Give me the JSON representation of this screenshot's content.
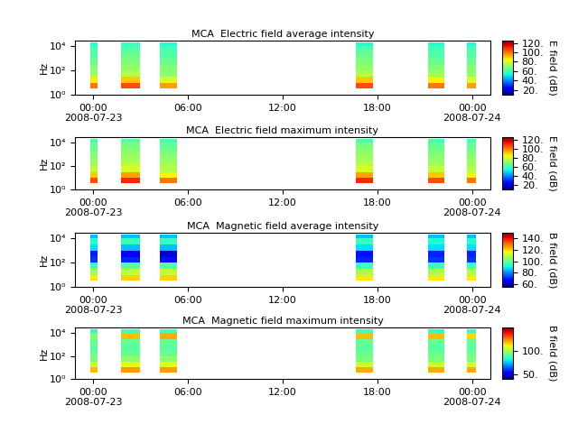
{
  "chart_data": [
    {
      "type": "heatmap",
      "title": "MCA  Electric field average intensity",
      "y_label": "Hz",
      "log": "y",
      "xlim": [
        -1.15,
        25.15
      ],
      "xticks": [
        {
          "value": 0,
          "label": "00:00\n2008-07-23"
        },
        {
          "value": 6,
          "label": "06:00"
        },
        {
          "value": 12,
          "label": "12:00"
        },
        {
          "value": 18,
          "label": "18:00"
        },
        {
          "value": 24,
          "label": "00:00\n2008-07-24"
        }
      ],
      "ylim": [
        1,
        30000
      ],
      "yticks": [
        {
          "value": 1,
          "label": "10⁰"
        },
        {
          "value": 100,
          "label": "10²"
        },
        {
          "value": 10000,
          "label": "10⁴"
        }
      ],
      "x_segments": [
        [
          -0.17,
          0.29
        ],
        [
          1.77,
          2.97
        ],
        [
          4.23,
          5.31
        ],
        [
          16.63,
          17.71
        ],
        [
          21.2,
          22.23
        ],
        [
          23.66,
          24.23
        ]
      ],
      "y_edges": [
        3.5,
        10,
        30,
        100,
        300,
        1000,
        3000,
        10000,
        20000
      ],
      "cells": [
        [
          100,
          105,
          95,
          105,
          100,
          95
        ],
        [
          85,
          90,
          80,
          90,
          85,
          80
        ],
        [
          72,
          75,
          70,
          75,
          72,
          70
        ],
        [
          68,
          70,
          68,
          70,
          68,
          68
        ],
        [
          65,
          68,
          65,
          68,
          65,
          65
        ],
        [
          62,
          65,
          62,
          65,
          62,
          62
        ],
        [
          60,
          62,
          60,
          62,
          60,
          60
        ],
        [
          55,
          58,
          55,
          55,
          55,
          55
        ]
      ],
      "colorbar_label": "E field (dB)",
      "colorbar_lim": [
        10,
        125
      ],
      "colorbar_ticks": [
        {
          "value": 20,
          "label": "20."
        },
        {
          "value": 40,
          "label": "40."
        },
        {
          "value": 60,
          "label": "60."
        },
        {
          "value": 80,
          "label": "80."
        },
        {
          "value": 100,
          "label": "100."
        },
        {
          "value": 120,
          "label": "120."
        }
      ]
    },
    {
      "type": "heatmap",
      "title": "MCA  Electric field maximum intensity",
      "y_label": "Hz",
      "log": "y",
      "xlim": [
        -1.15,
        25.15
      ],
      "xticks": [
        {
          "value": 0,
          "label": "00:00\n2008-07-23"
        },
        {
          "value": 6,
          "label": "06:00"
        },
        {
          "value": 12,
          "label": "12:00"
        },
        {
          "value": 18,
          "label": "18:00"
        },
        {
          "value": 24,
          "label": "00:00\n2008-07-24"
        }
      ],
      "ylim": [
        1,
        30000
      ],
      "yticks": [
        {
          "value": 1,
          "label": "10⁰"
        },
        {
          "value": 100,
          "label": "10²"
        },
        {
          "value": 10000,
          "label": "10⁴"
        }
      ],
      "x_segments": [
        [
          -0.17,
          0.29
        ],
        [
          1.77,
          2.97
        ],
        [
          4.23,
          5.31
        ],
        [
          16.63,
          17.71
        ],
        [
          21.2,
          22.23
        ],
        [
          23.66,
          24.23
        ]
      ],
      "y_edges": [
        3.5,
        10,
        30,
        100,
        300,
        1000,
        3000,
        10000,
        20000
      ],
      "cells": [
        [
          105,
          110,
          100,
          110,
          105,
          100
        ],
        [
          90,
          95,
          85,
          95,
          90,
          85
        ],
        [
          77,
          80,
          75,
          80,
          77,
          75
        ],
        [
          72,
          75,
          72,
          75,
          72,
          72
        ],
        [
          70,
          72,
          70,
          72,
          70,
          70
        ],
        [
          67,
          70,
          67,
          70,
          67,
          67
        ],
        [
          64,
          67,
          64,
          67,
          64,
          64
        ],
        [
          60,
          62,
          60,
          60,
          60,
          60
        ]
      ],
      "colorbar_label": "E field (dB)",
      "colorbar_lim": [
        10,
        125
      ],
      "colorbar_ticks": [
        {
          "value": 20,
          "label": "20."
        },
        {
          "value": 40,
          "label": "40."
        },
        {
          "value": 60,
          "label": "60."
        },
        {
          "value": 80,
          "label": "80."
        },
        {
          "value": 100,
          "label": "100."
        },
        {
          "value": 120,
          "label": "120."
        }
      ]
    },
    {
      "type": "heatmap",
      "title": "MCA  Magnetic field average intensity",
      "y_label": "Hz",
      "log": "y",
      "xlim": [
        -1.15,
        25.15
      ],
      "xticks": [
        {
          "value": 0,
          "label": "00:00\n2008-07-23"
        },
        {
          "value": 6,
          "label": "06:00"
        },
        {
          "value": 12,
          "label": "12:00"
        },
        {
          "value": 18,
          "label": "18:00"
        },
        {
          "value": 24,
          "label": "00:00\n2008-07-24"
        }
      ],
      "ylim": [
        1,
        30000
      ],
      "yticks": [
        {
          "value": 1,
          "label": "10⁰"
        },
        {
          "value": 100,
          "label": "10²"
        },
        {
          "value": 10000,
          "label": "10⁴"
        }
      ],
      "x_segments": [
        [
          -0.17,
          0.29
        ],
        [
          1.77,
          2.97
        ],
        [
          4.23,
          5.31
        ],
        [
          16.63,
          17.71
        ],
        [
          21.2,
          22.23
        ],
        [
          23.66,
          24.23
        ]
      ],
      "y_edges": [
        3.5,
        10,
        30,
        100,
        300,
        1000,
        3000,
        10000,
        20000
      ],
      "cells": [
        [
          118,
          120,
          120,
          118,
          118,
          118
        ],
        [
          108,
          110,
          110,
          108,
          108,
          108
        ],
        [
          95,
          98,
          98,
          95,
          95,
          95
        ],
        [
          72,
          70,
          68,
          70,
          72,
          72
        ],
        [
          70,
          65,
          62,
          68,
          70,
          70
        ],
        [
          88,
          85,
          85,
          88,
          88,
          88
        ],
        [
          92,
          95,
          95,
          95,
          92,
          92
        ],
        [
          85,
          85,
          85,
          85,
          85,
          85
        ]
      ],
      "colorbar_label": "B field (dB)",
      "colorbar_lim": [
        55,
        150
      ],
      "colorbar_ticks": [
        {
          "value": 60,
          "label": "60."
        },
        {
          "value": 80,
          "label": "80."
        },
        {
          "value": 100,
          "label": "100."
        },
        {
          "value": 120,
          "label": "120."
        },
        {
          "value": 140,
          "label": "140."
        }
      ]
    },
    {
      "type": "heatmap",
      "title": "MCA  Magnetic field maximum intensity",
      "y_label": "Hz",
      "log": "y",
      "xlim": [
        -1.15,
        25.15
      ],
      "xticks": [
        {
          "value": 0,
          "label": "00:00\n2008-07-23"
        },
        {
          "value": 6,
          "label": "06:00"
        },
        {
          "value": 12,
          "label": "12:00"
        },
        {
          "value": 18,
          "label": "18:00"
        },
        {
          "value": 24,
          "label": "00:00\n2008-07-24"
        }
      ],
      "ylim": [
        1,
        30000
      ],
      "yticks": [
        {
          "value": 1,
          "label": "10⁰"
        },
        {
          "value": 100,
          "label": "10²"
        },
        {
          "value": 10000,
          "label": "10⁴"
        }
      ],
      "x_segments": [
        [
          -0.17,
          0.29
        ],
        [
          1.77,
          2.97
        ],
        [
          4.23,
          5.31
        ],
        [
          16.63,
          17.71
        ],
        [
          21.2,
          22.23
        ],
        [
          23.66,
          24.23
        ]
      ],
      "y_edges": [
        3.5,
        10,
        30,
        100,
        300,
        1000,
        3000,
        10000,
        20000
      ],
      "cells": [
        [
          118,
          122,
          122,
          120,
          120,
          120
        ],
        [
          105,
          108,
          108,
          105,
          105,
          105
        ],
        [
          95,
          98,
          98,
          95,
          95,
          95
        ],
        [
          92,
          92,
          92,
          92,
          92,
          92
        ],
        [
          90,
          90,
          90,
          90,
          90,
          90
        ],
        [
          92,
          92,
          92,
          92,
          92,
          92
        ],
        [
          95,
          118,
          120,
          118,
          118,
          115
        ],
        [
          85,
          88,
          88,
          88,
          85,
          85
        ]
      ],
      "colorbar_label": "B field (dB)",
      "colorbar_lim": [
        40,
        150
      ],
      "colorbar_ticks": [
        {
          "value": 50,
          "label": "50."
        },
        {
          "value": 100,
          "label": "100."
        }
      ]
    }
  ]
}
